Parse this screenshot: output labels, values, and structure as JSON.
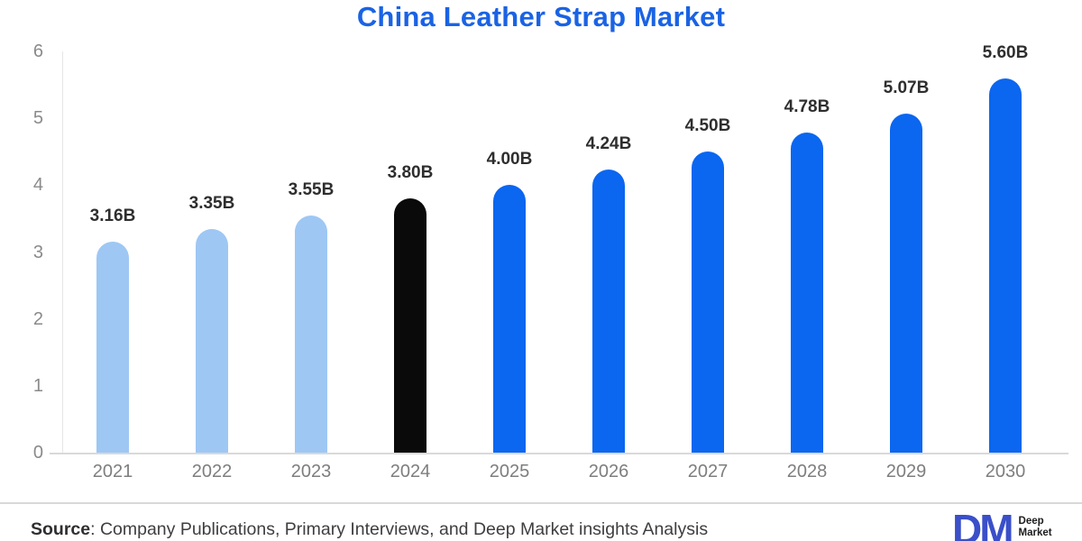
{
  "chart_data": {
    "type": "bar",
    "title": "China Leather Strap Market",
    "title_color": "#1a63e4",
    "categories": [
      "2021",
      "2022",
      "2023",
      "2024",
      "2025",
      "2026",
      "2027",
      "2028",
      "2029",
      "2030"
    ],
    "values": [
      3.16,
      3.35,
      3.55,
      3.8,
      4.0,
      4.24,
      4.5,
      4.78,
      5.07,
      5.6
    ],
    "bar_labels": [
      "3.16B",
      "3.35B",
      "3.55B",
      "3.80B",
      "4.00B",
      "4.24B",
      "4.50B",
      "4.78B",
      "5.07B",
      "5.60B"
    ],
    "bar_colors": [
      "#9ec7f4",
      "#9ec7f4",
      "#9ec7f4",
      "#0a0a0a",
      "#0b66f0",
      "#0b66f0",
      "#0b66f0",
      "#0b66f0",
      "#0b66f0",
      "#0b66f0"
    ],
    "xlabel": "",
    "ylabel": "",
    "ylim": [
      0,
      6
    ],
    "yticks": [
      0,
      1,
      2,
      3,
      4,
      5,
      6
    ],
    "grid": false,
    "legend": "none",
    "units": "billions USD"
  },
  "footer": {
    "source_label": "Source",
    "source_rest": ": Company Publications, Primary Interviews, and Deep Market insights Analysis",
    "logo_monogram": "DM",
    "logo_name_line1": "Deep",
    "logo_name_line2": "Market",
    "logo_color": "#3a4fc9"
  }
}
